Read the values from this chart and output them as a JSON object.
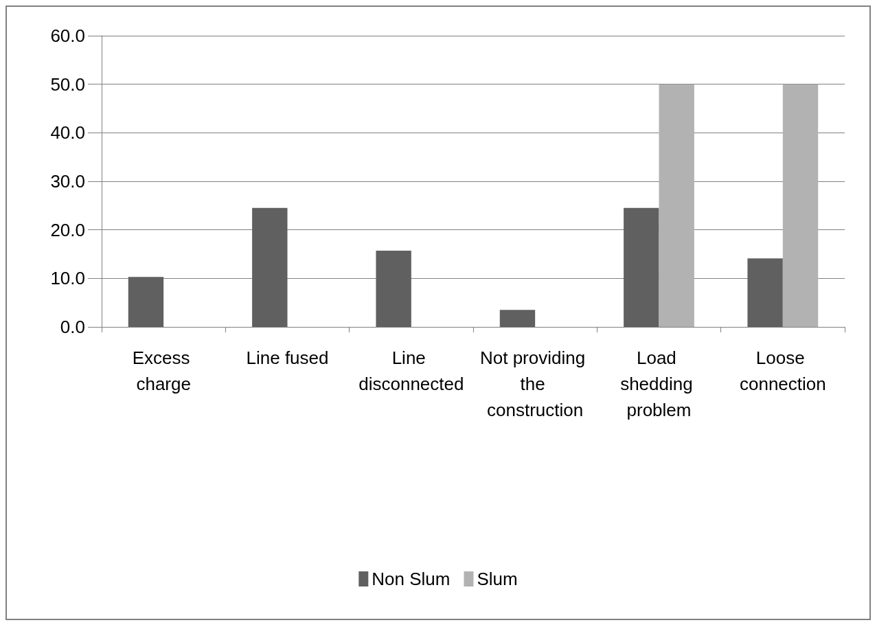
{
  "chart_data": {
    "type": "bar",
    "categories": [
      "Excess charge",
      "Line fused",
      "Line disconnected",
      "Not providing the construction",
      "Load shedding problem",
      "Loose connection"
    ],
    "series": [
      {
        "name": "Non Slum",
        "color": "#606060",
        "values": [
          10.3,
          24.5,
          15.7,
          3.5,
          24.5,
          14.1
        ]
      },
      {
        "name": "Slum",
        "color": "#b2b2b2",
        "values": [
          0,
          0,
          0,
          0,
          50,
          50
        ]
      }
    ],
    "ylim": [
      0,
      60
    ],
    "yticks": [
      {
        "value": 0,
        "label": "0.0"
      },
      {
        "value": 10,
        "label": "10.0"
      },
      {
        "value": 20,
        "label": "20.0"
      },
      {
        "value": 30,
        "label": "30.0"
      },
      {
        "value": 40,
        "label": "40.0"
      },
      {
        "value": 50,
        "label": "50.0"
      },
      {
        "value": 60,
        "label": "60.0"
      }
    ],
    "grid": "y",
    "legend": "bottom"
  }
}
